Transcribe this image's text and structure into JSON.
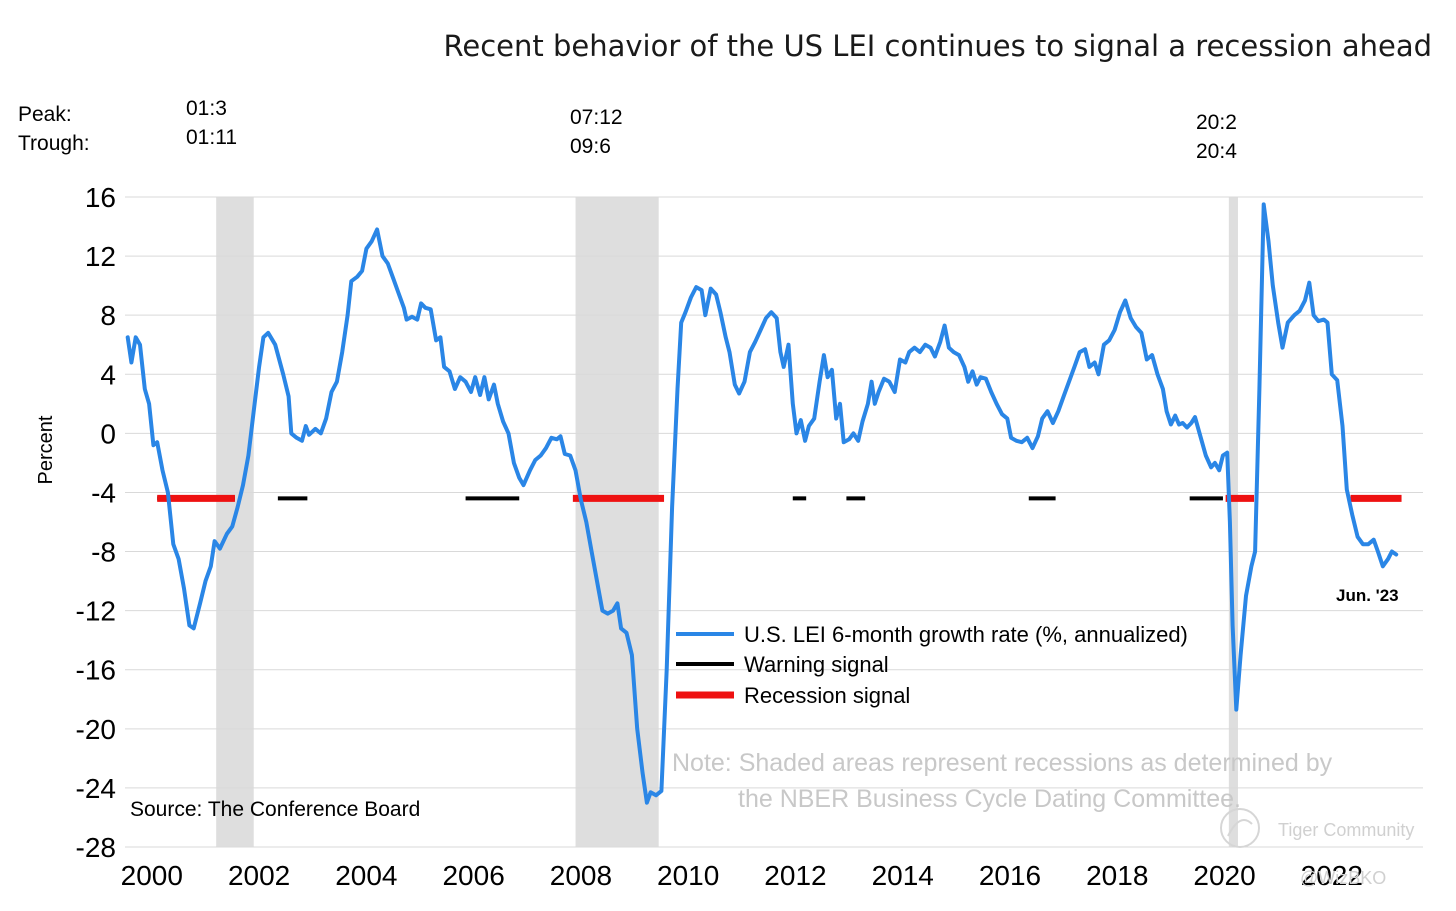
{
  "chart_data": {
    "type": "line",
    "title": "Recent behavior of the US LEI continues to signal a recession ahead",
    "ylabel": "Percent",
    "xlabel": "",
    "ylim": [
      -28,
      16
    ],
    "xlim": [
      1999.5,
      2023.7
    ],
    "yticks": [
      16,
      12,
      8,
      4,
      0,
      -4,
      -8,
      -12,
      -16,
      -20,
      -24,
      -28
    ],
    "ytick_labels": [
      "16",
      "12",
      "8",
      "4",
      "0",
      "-4",
      "-8",
      "-12",
      "-16",
      "-20",
      "-24",
      "-28"
    ],
    "xticks": [
      2000,
      2002,
      2004,
      2006,
      2008,
      2010,
      2012,
      2014,
      2016,
      2018,
      2020,
      2022
    ],
    "xtick_labels": [
      "2000",
      "2002",
      "2004",
      "2006",
      "2008",
      "2010",
      "2012",
      "2014",
      "2016",
      "2018",
      "2020",
      "2022"
    ],
    "grid": true,
    "recessions": [
      {
        "start": 2001.2,
        "end": 2001.9
      },
      {
        "start": 2007.9,
        "end": 2009.45
      },
      {
        "start": 2020.08,
        "end": 2020.25
      }
    ],
    "cycle_labels": {
      "peak_label": "Peak:",
      "trough_label": "Trough:",
      "cycles": [
        {
          "peak": "01:3",
          "trough": "01:11"
        },
        {
          "peak": "07:12",
          "trough": "09:6"
        },
        {
          "peak": "20:2",
          "trough": "20:4"
        }
      ]
    },
    "series": [
      {
        "name": "U.S. LEI 6-month growth rate (%, annualized)",
        "color": "#2a86e6",
        "points": [
          [
            1999.55,
            6.5
          ],
          [
            1999.62,
            4.8
          ],
          [
            1999.7,
            6.5
          ],
          [
            1999.78,
            6.0
          ],
          [
            1999.87,
            3.0
          ],
          [
            1999.95,
            2.0
          ],
          [
            2000.03,
            -0.8
          ],
          [
            2000.1,
            -0.6
          ],
          [
            2000.2,
            -2.5
          ],
          [
            2000.3,
            -4.0
          ],
          [
            2000.4,
            -7.5
          ],
          [
            2000.5,
            -8.5
          ],
          [
            2000.6,
            -10.5
          ],
          [
            2000.7,
            -13.0
          ],
          [
            2000.78,
            -13.2
          ],
          [
            2000.9,
            -11.5
          ],
          [
            2001.0,
            -10.0
          ],
          [
            2001.1,
            -9.0
          ],
          [
            2001.17,
            -7.3
          ],
          [
            2001.27,
            -7.8
          ],
          [
            2001.4,
            -6.8
          ],
          [
            2001.5,
            -6.3
          ],
          [
            2001.6,
            -5.0
          ],
          [
            2001.7,
            -3.5
          ],
          [
            2001.8,
            -1.5
          ],
          [
            2001.9,
            1.5
          ],
          [
            2002.0,
            4.5
          ],
          [
            2002.08,
            6.5
          ],
          [
            2002.17,
            6.8
          ],
          [
            2002.3,
            6.0
          ],
          [
            2002.45,
            4.0
          ],
          [
            2002.55,
            2.5
          ],
          [
            2002.6,
            0.0
          ],
          [
            2002.7,
            -0.3
          ],
          [
            2002.8,
            -0.5
          ],
          [
            2002.87,
            0.5
          ],
          [
            2002.93,
            -0.1
          ],
          [
            2003.05,
            0.3
          ],
          [
            2003.15,
            0.0
          ],
          [
            2003.25,
            1.0
          ],
          [
            2003.35,
            2.8
          ],
          [
            2003.45,
            3.5
          ],
          [
            2003.55,
            5.5
          ],
          [
            2003.65,
            8.0
          ],
          [
            2003.72,
            10.3
          ],
          [
            2003.83,
            10.6
          ],
          [
            2003.92,
            11.0
          ],
          [
            2004.0,
            12.5
          ],
          [
            2004.1,
            13.0
          ],
          [
            2004.2,
            13.8
          ],
          [
            2004.3,
            12.0
          ],
          [
            2004.4,
            11.5
          ],
          [
            2004.5,
            10.5
          ],
          [
            2004.6,
            9.5
          ],
          [
            2004.7,
            8.5
          ],
          [
            2004.75,
            7.7
          ],
          [
            2004.85,
            7.9
          ],
          [
            2004.95,
            7.7
          ],
          [
            2005.02,
            8.8
          ],
          [
            2005.1,
            8.5
          ],
          [
            2005.2,
            8.4
          ],
          [
            2005.3,
            6.3
          ],
          [
            2005.38,
            6.5
          ],
          [
            2005.45,
            4.5
          ],
          [
            2005.55,
            4.2
          ],
          [
            2005.65,
            3.0
          ],
          [
            2005.75,
            3.8
          ],
          [
            2005.85,
            3.5
          ],
          [
            2005.95,
            2.8
          ],
          [
            2006.03,
            3.8
          ],
          [
            2006.12,
            2.6
          ],
          [
            2006.2,
            3.8
          ],
          [
            2006.28,
            2.3
          ],
          [
            2006.38,
            3.3
          ],
          [
            2006.45,
            2.0
          ],
          [
            2006.55,
            0.8
          ],
          [
            2006.65,
            0.0
          ],
          [
            2006.75,
            -2.0
          ],
          [
            2006.85,
            -3.0
          ],
          [
            2006.93,
            -3.5
          ],
          [
            2007.05,
            -2.5
          ],
          [
            2007.15,
            -1.8
          ],
          [
            2007.25,
            -1.5
          ],
          [
            2007.35,
            -1.0
          ],
          [
            2007.45,
            -0.3
          ],
          [
            2007.55,
            -0.4
          ],
          [
            2007.62,
            -0.2
          ],
          [
            2007.7,
            -1.4
          ],
          [
            2007.8,
            -1.5
          ],
          [
            2007.9,
            -2.5
          ],
          [
            2008.0,
            -4.5
          ],
          [
            2008.1,
            -6.0
          ],
          [
            2008.2,
            -8.0
          ],
          [
            2008.3,
            -10.0
          ],
          [
            2008.4,
            -12.0
          ],
          [
            2008.5,
            -12.2
          ],
          [
            2008.6,
            -12.0
          ],
          [
            2008.68,
            -11.5
          ],
          [
            2008.75,
            -13.2
          ],
          [
            2008.85,
            -13.5
          ],
          [
            2008.95,
            -15.0
          ],
          [
            2009.05,
            -20.0
          ],
          [
            2009.15,
            -23.0
          ],
          [
            2009.23,
            -25.0
          ],
          [
            2009.3,
            -24.3
          ],
          [
            2009.4,
            -24.5
          ],
          [
            2009.5,
            -24.2
          ],
          [
            2009.6,
            -16.0
          ],
          [
            2009.7,
            -5.0
          ],
          [
            2009.8,
            3.0
          ],
          [
            2009.87,
            7.5
          ],
          [
            2009.95,
            8.2
          ],
          [
            2010.05,
            9.2
          ],
          [
            2010.15,
            9.9
          ],
          [
            2010.25,
            9.7
          ],
          [
            2010.32,
            8.0
          ],
          [
            2010.42,
            9.8
          ],
          [
            2010.52,
            9.4
          ],
          [
            2010.6,
            8.2
          ],
          [
            2010.7,
            6.5
          ],
          [
            2010.77,
            5.5
          ],
          [
            2010.87,
            3.3
          ],
          [
            2010.95,
            2.7
          ],
          [
            2011.05,
            3.5
          ],
          [
            2011.15,
            5.5
          ],
          [
            2011.25,
            6.2
          ],
          [
            2011.35,
            7.0
          ],
          [
            2011.45,
            7.8
          ],
          [
            2011.55,
            8.2
          ],
          [
            2011.65,
            7.8
          ],
          [
            2011.72,
            5.5
          ],
          [
            2011.78,
            4.5
          ],
          [
            2011.87,
            6.0
          ],
          [
            2011.95,
            2.0
          ],
          [
            2012.02,
            0.0
          ],
          [
            2012.1,
            0.9
          ],
          [
            2012.18,
            -0.5
          ],
          [
            2012.25,
            0.5
          ],
          [
            2012.35,
            1.0
          ],
          [
            2012.45,
            3.5
          ],
          [
            2012.53,
            5.3
          ],
          [
            2012.6,
            3.8
          ],
          [
            2012.68,
            4.3
          ],
          [
            2012.76,
            1.0
          ],
          [
            2012.83,
            2.0
          ],
          [
            2012.9,
            -0.6
          ],
          [
            2013.0,
            -0.4
          ],
          [
            2013.08,
            0.0
          ],
          [
            2013.17,
            -0.5
          ],
          [
            2013.25,
            0.8
          ],
          [
            2013.35,
            2.0
          ],
          [
            2013.42,
            3.5
          ],
          [
            2013.48,
            2.0
          ],
          [
            2013.55,
            2.8
          ],
          [
            2013.65,
            3.7
          ],
          [
            2013.75,
            3.5
          ],
          [
            2013.85,
            2.8
          ],
          [
            2013.95,
            5.0
          ],
          [
            2014.05,
            4.8
          ],
          [
            2014.12,
            5.5
          ],
          [
            2014.22,
            5.8
          ],
          [
            2014.32,
            5.5
          ],
          [
            2014.42,
            6.0
          ],
          [
            2014.52,
            5.8
          ],
          [
            2014.6,
            5.2
          ],
          [
            2014.7,
            6.2
          ],
          [
            2014.78,
            7.3
          ],
          [
            2014.86,
            5.8
          ],
          [
            2014.95,
            5.5
          ],
          [
            2015.05,
            5.3
          ],
          [
            2015.15,
            4.5
          ],
          [
            2015.22,
            3.5
          ],
          [
            2015.3,
            4.2
          ],
          [
            2015.38,
            3.3
          ],
          [
            2015.45,
            3.8
          ],
          [
            2015.55,
            3.7
          ],
          [
            2015.65,
            2.8
          ],
          [
            2015.75,
            2.0
          ],
          [
            2015.85,
            1.3
          ],
          [
            2015.95,
            1.0
          ],
          [
            2016.02,
            -0.3
          ],
          [
            2016.12,
            -0.5
          ],
          [
            2016.22,
            -0.6
          ],
          [
            2016.32,
            -0.3
          ],
          [
            2016.42,
            -1.0
          ],
          [
            2016.52,
            -0.2
          ],
          [
            2016.6,
            1.0
          ],
          [
            2016.7,
            1.5
          ],
          [
            2016.8,
            0.7
          ],
          [
            2016.9,
            1.5
          ],
          [
            2017.0,
            2.5
          ],
          [
            2017.1,
            3.5
          ],
          [
            2017.2,
            4.5
          ],
          [
            2017.3,
            5.5
          ],
          [
            2017.4,
            5.7
          ],
          [
            2017.48,
            4.5
          ],
          [
            2017.58,
            4.8
          ],
          [
            2017.65,
            4.0
          ],
          [
            2017.75,
            6.0
          ],
          [
            2017.85,
            6.3
          ],
          [
            2017.95,
            7.0
          ],
          [
            2018.05,
            8.2
          ],
          [
            2018.15,
            9.0
          ],
          [
            2018.25,
            7.8
          ],
          [
            2018.35,
            7.2
          ],
          [
            2018.45,
            6.8
          ],
          [
            2018.55,
            5.0
          ],
          [
            2018.65,
            5.3
          ],
          [
            2018.75,
            4.0
          ],
          [
            2018.85,
            3.0
          ],
          [
            2018.92,
            1.5
          ],
          [
            2019.0,
            0.6
          ],
          [
            2019.08,
            1.2
          ],
          [
            2019.15,
            0.6
          ],
          [
            2019.22,
            0.7
          ],
          [
            2019.3,
            0.4
          ],
          [
            2019.38,
            0.7
          ],
          [
            2019.45,
            1.1
          ],
          [
            2019.55,
            -0.2
          ],
          [
            2019.65,
            -1.5
          ],
          [
            2019.75,
            -2.3
          ],
          [
            2019.82,
            -2.0
          ],
          [
            2019.9,
            -2.5
          ],
          [
            2019.97,
            -1.5
          ],
          [
            2020.05,
            -1.3
          ],
          [
            2020.1,
            -6.0
          ],
          [
            2020.15,
            -13.0
          ],
          [
            2020.22,
            -18.7
          ],
          [
            2020.3,
            -15.0
          ],
          [
            2020.4,
            -11.0
          ],
          [
            2020.5,
            -9.0
          ],
          [
            2020.57,
            -8.0
          ],
          [
            2020.65,
            3.0
          ],
          [
            2020.73,
            15.5
          ],
          [
            2020.82,
            13.0
          ],
          [
            2020.9,
            10.0
          ],
          [
            2021.0,
            7.5
          ],
          [
            2021.08,
            5.8
          ],
          [
            2021.18,
            7.5
          ],
          [
            2021.3,
            8.0
          ],
          [
            2021.4,
            8.3
          ],
          [
            2021.5,
            9.0
          ],
          [
            2021.58,
            10.2
          ],
          [
            2021.66,
            8.0
          ],
          [
            2021.75,
            7.6
          ],
          [
            2021.85,
            7.7
          ],
          [
            2021.92,
            7.5
          ],
          [
            2022.0,
            4.0
          ],
          [
            2022.1,
            3.6
          ],
          [
            2022.2,
            0.5
          ],
          [
            2022.28,
            -3.8
          ],
          [
            2022.38,
            -5.5
          ],
          [
            2022.48,
            -7.0
          ],
          [
            2022.58,
            -7.5
          ],
          [
            2022.68,
            -7.5
          ],
          [
            2022.78,
            -7.2
          ],
          [
            2022.86,
            -8.0
          ],
          [
            2022.95,
            -9.0
          ],
          [
            2023.05,
            -8.5
          ],
          [
            2023.12,
            -8.0
          ],
          [
            2023.2,
            -8.2
          ]
        ]
      },
      {
        "name": "Warning signal",
        "color": "#000000",
        "segments": [
          [
            2000.1,
            2001.55
          ],
          [
            2002.35,
            2002.9
          ],
          [
            2005.85,
            2006.85
          ],
          [
            2011.95,
            2012.2
          ],
          [
            2012.95,
            2013.3
          ],
          [
            2016.35,
            2016.85
          ],
          [
            2019.35,
            2019.97
          ]
        ]
      },
      {
        "name": "Recession signal",
        "color": "#ee1111",
        "segments": [
          [
            2000.1,
            2001.55
          ],
          [
            2007.85,
            2009.55
          ],
          [
            2020.02,
            2020.55
          ],
          [
            2022.35,
            2023.3
          ]
        ]
      }
    ],
    "signal_level": -4.4,
    "annotations": {
      "end_label": "Jun. '23",
      "source": "Source: The Conference Board",
      "note_line1": "Note: Shaded areas represent recessions as determined by",
      "note_line2": "the NBER Business Cycle Dating Committee."
    }
  },
  "watermark": {
    "brand": "Tiger Community",
    "handle": "@WizBKO"
  }
}
